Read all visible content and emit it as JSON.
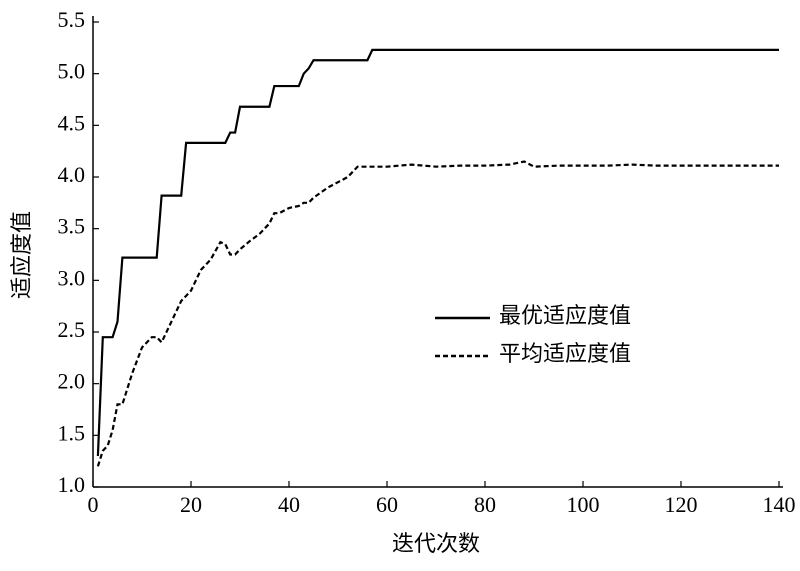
{
  "chart_data": {
    "type": "line",
    "xlabel": "迭代次数",
    "ylabel": "适应度值",
    "x": [
      1,
      2,
      3,
      4,
      5,
      6,
      8,
      10,
      12,
      13,
      14,
      16,
      18,
      19,
      20,
      22,
      24,
      26,
      27,
      28,
      29,
      30,
      32,
      34,
      36,
      37,
      38,
      40,
      42,
      43,
      44,
      45,
      48,
      50,
      52,
      54,
      56,
      57,
      60,
      65,
      70,
      75,
      80,
      85,
      88,
      90,
      95,
      100,
      105,
      110,
      115,
      120,
      125,
      130,
      135,
      140
    ],
    "series": [
      {
        "name": "最优适应度值",
        "color": "#000000",
        "style": "solid",
        "values": [
          1.3,
          2.45,
          2.45,
          2.45,
          2.6,
          3.22,
          3.22,
          3.22,
          3.22,
          3.22,
          3.82,
          3.82,
          3.82,
          4.33,
          4.33,
          4.33,
          4.33,
          4.33,
          4.33,
          4.43,
          4.43,
          4.68,
          4.68,
          4.68,
          4.68,
          4.88,
          4.88,
          4.88,
          4.88,
          5.0,
          5.05,
          5.13,
          5.13,
          5.13,
          5.13,
          5.13,
          5.13,
          5.23,
          5.23,
          5.23,
          5.23,
          5.23,
          5.23,
          5.23,
          5.23,
          5.23,
          5.23,
          5.23,
          5.23,
          5.23,
          5.23,
          5.23,
          5.23,
          5.23,
          5.23,
          5.23
        ]
      },
      {
        "name": "平均适应度值",
        "color": "#000000",
        "style": "dashed",
        "values": [
          1.2,
          1.35,
          1.4,
          1.55,
          1.8,
          1.8,
          2.1,
          2.35,
          2.45,
          2.45,
          2.4,
          2.6,
          2.8,
          2.85,
          2.9,
          3.1,
          3.2,
          3.37,
          3.35,
          3.25,
          3.25,
          3.3,
          3.38,
          3.45,
          3.55,
          3.65,
          3.65,
          3.7,
          3.72,
          3.75,
          3.75,
          3.8,
          3.9,
          3.95,
          4.0,
          4.1,
          4.1,
          4.1,
          4.1,
          4.12,
          4.1,
          4.11,
          4.11,
          4.12,
          4.15,
          4.1,
          4.11,
          4.11,
          4.11,
          4.12,
          4.11,
          4.11,
          4.11,
          4.11,
          4.11,
          4.11
        ]
      }
    ],
    "xlim": [
      0,
      140
    ],
    "xticks": [
      0,
      20,
      40,
      60,
      80,
      100,
      120,
      140
    ],
    "ylim": [
      1,
      5.5
    ],
    "yticks": [
      {
        "value": 1,
        "label": "1.0"
      },
      1.5,
      {
        "value": 2,
        "label": "2.0"
      },
      2.5,
      {
        "value": 3,
        "label": "3.0"
      },
      3.5,
      {
        "value": 4,
        "label": "4.0"
      },
      4.5,
      {
        "value": 5,
        "label": "5.0"
      },
      5.5
    ],
    "grid": false,
    "legend": "center-right"
  }
}
